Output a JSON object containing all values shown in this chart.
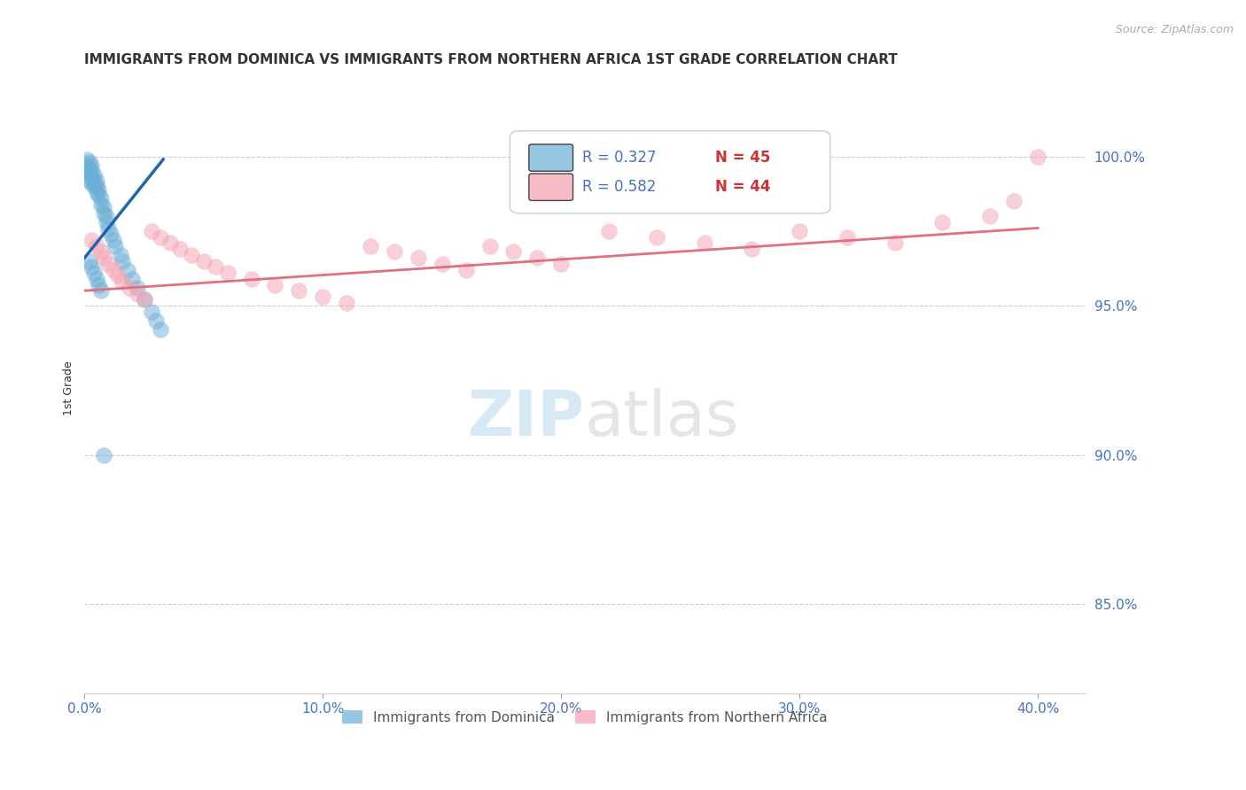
{
  "title": "IMMIGRANTS FROM DOMINICA VS IMMIGRANTS FROM NORTHERN AFRICA 1ST GRADE CORRELATION CHART",
  "source": "Source: ZipAtlas.com",
  "ylabel": "1st Grade",
  "y_ticks": [
    0.85,
    0.9,
    0.95,
    1.0
  ],
  "y_tick_labels": [
    "85.0%",
    "90.0%",
    "95.0%",
    "100.0%"
  ],
  "x_ticks": [
    0.0,
    0.1,
    0.2,
    0.3,
    0.4
  ],
  "x_tick_labels": [
    "0.0%",
    "10.0%",
    "20.0%",
    "30.0%",
    "40.0%"
  ],
  "xlim": [
    0.0,
    0.42
  ],
  "ylim": [
    0.82,
    1.025
  ],
  "legend_label1": "Immigrants from Dominica",
  "legend_label2": "Immigrants from Northern Africa",
  "R1": 0.327,
  "N1": 45,
  "R2": 0.582,
  "N2": 44,
  "color_blue": "#6baed6",
  "color_pink": "#f4a0b0",
  "color_blue_line": "#2166ac",
  "color_pink_line": "#e07080",
  "color_axis_labels": "#4472c4",
  "color_title": "#333333",
  "dot_alpha": 0.5,
  "dot_size": 180,
  "blue_x": [
    0.001,
    0.001,
    0.001,
    0.002,
    0.002,
    0.002,
    0.002,
    0.003,
    0.003,
    0.003,
    0.003,
    0.004,
    0.004,
    0.004,
    0.005,
    0.005,
    0.005,
    0.006,
    0.006,
    0.007,
    0.007,
    0.008,
    0.008,
    0.009,
    0.009,
    0.01,
    0.011,
    0.012,
    0.013,
    0.015,
    0.016,
    0.018,
    0.02,
    0.022,
    0.025,
    0.028,
    0.03,
    0.032,
    0.002,
    0.003,
    0.004,
    0.005,
    0.006,
    0.007,
    0.008
  ],
  "blue_y": [
    0.999,
    0.997,
    0.995,
    0.998,
    0.996,
    0.994,
    0.992,
    0.997,
    0.995,
    0.993,
    0.991,
    0.994,
    0.992,
    0.99,
    0.992,
    0.99,
    0.988,
    0.989,
    0.987,
    0.986,
    0.984,
    0.983,
    0.981,
    0.98,
    0.978,
    0.976,
    0.974,
    0.972,
    0.97,
    0.967,
    0.965,
    0.962,
    0.959,
    0.956,
    0.952,
    0.948,
    0.945,
    0.942,
    0.965,
    0.963,
    0.961,
    0.959,
    0.957,
    0.955,
    0.9
  ],
  "pink_x": [
    0.003,
    0.005,
    0.007,
    0.008,
    0.01,
    0.012,
    0.014,
    0.016,
    0.019,
    0.022,
    0.025,
    0.028,
    0.032,
    0.036,
    0.04,
    0.045,
    0.05,
    0.055,
    0.06,
    0.07,
    0.08,
    0.09,
    0.1,
    0.11,
    0.12,
    0.13,
    0.14,
    0.15,
    0.16,
    0.17,
    0.18,
    0.19,
    0.2,
    0.22,
    0.24,
    0.26,
    0.28,
    0.3,
    0.32,
    0.34,
    0.36,
    0.38,
    0.39,
    0.4
  ],
  "pink_y": [
    0.972,
    0.97,
    0.968,
    0.966,
    0.964,
    0.962,
    0.96,
    0.958,
    0.956,
    0.954,
    0.952,
    0.975,
    0.973,
    0.971,
    0.969,
    0.967,
    0.965,
    0.963,
    0.961,
    0.959,
    0.957,
    0.955,
    0.953,
    0.951,
    0.97,
    0.968,
    0.966,
    0.964,
    0.962,
    0.97,
    0.968,
    0.966,
    0.964,
    0.975,
    0.973,
    0.971,
    0.969,
    0.975,
    0.973,
    0.971,
    0.978,
    0.98,
    0.985,
    1.0
  ],
  "blue_trend_x": [
    0.0,
    0.033
  ],
  "blue_trend_y": [
    0.966,
    0.999
  ],
  "pink_trend_x": [
    0.0,
    0.4
  ],
  "pink_trend_y": [
    0.955,
    0.976
  ],
  "watermark_zip": "ZIP",
  "watermark_atlas": "atlas",
  "background_color": "#ffffff"
}
